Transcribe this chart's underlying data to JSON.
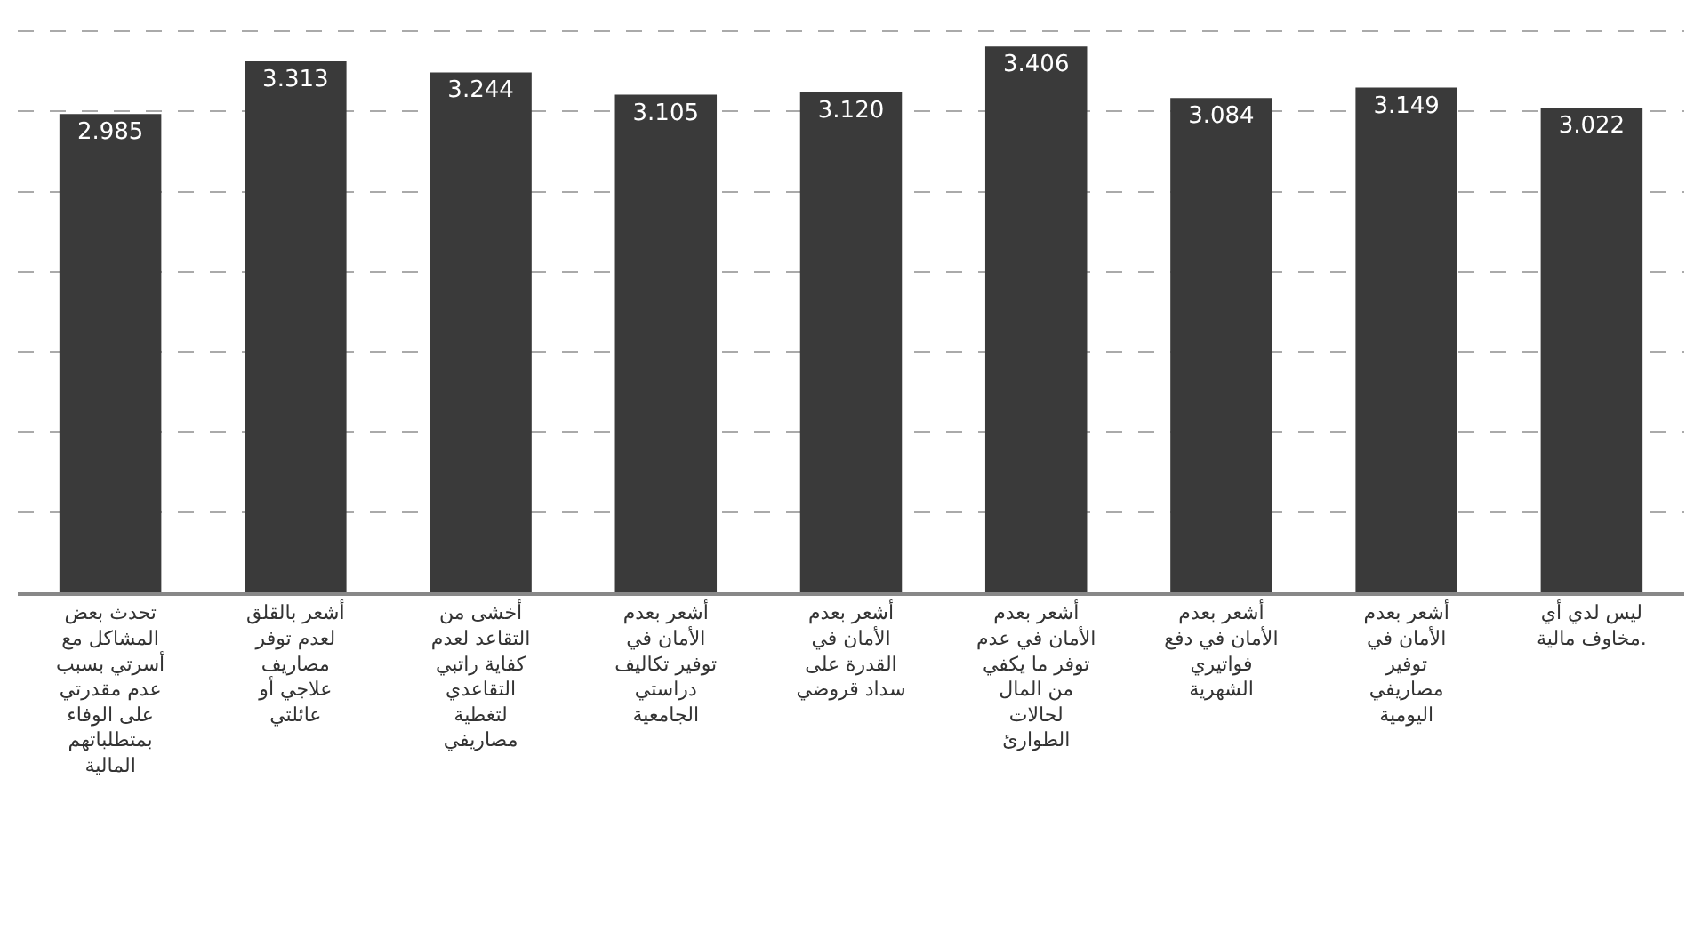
{
  "chart_data": {
    "type": "bar",
    "categories": [
      "تحدث بعض\nالمشاكل مع\nأسرتي بسبب\nعدم مقدرتي\nعلى الوفاء\nبمتطلباتهم\nالمالية",
      "أشعر بالقلق\nلعدم توفر\nمصاريف\nعلاجي أو\nعائلتي",
      "أخشى من\nالتقاعد لعدم\nكفاية راتبي\nالتقاعدي\nلتغطية\nمصاريفي",
      "أشعر بعدم\nالأمان في\nتوفير تكاليف\nدراستي\nالجامعية",
      "أشعر بعدم\nالأمان في\nالقدرة على\nسداد قروضي",
      "أشعر بعدم\nالأمان في عدم\nتوفر ما يكفي\nمن المال\nلحالات\nالطوارئ",
      "أشعر بعدم\nالأمان في دفع\nفواتيري\nالشهرية",
      "أشعر بعدم\nالأمان في\nتوفير\nمصاريفي\nاليومية",
      "ليس لدي أي\nمخاوف مالية."
    ],
    "values": [
      2.985,
      3.313,
      3.244,
      3.105,
      3.12,
      3.406,
      3.084,
      3.149,
      3.022
    ],
    "color": "#3a3a3a",
    "value_labels": [
      "2.985",
      "3.313",
      "3.244",
      "3.105",
      "3.120",
      "3.406",
      "3.084",
      "3.149",
      "3.022"
    ],
    "grid": "y",
    "tick_labels": "x"
  }
}
